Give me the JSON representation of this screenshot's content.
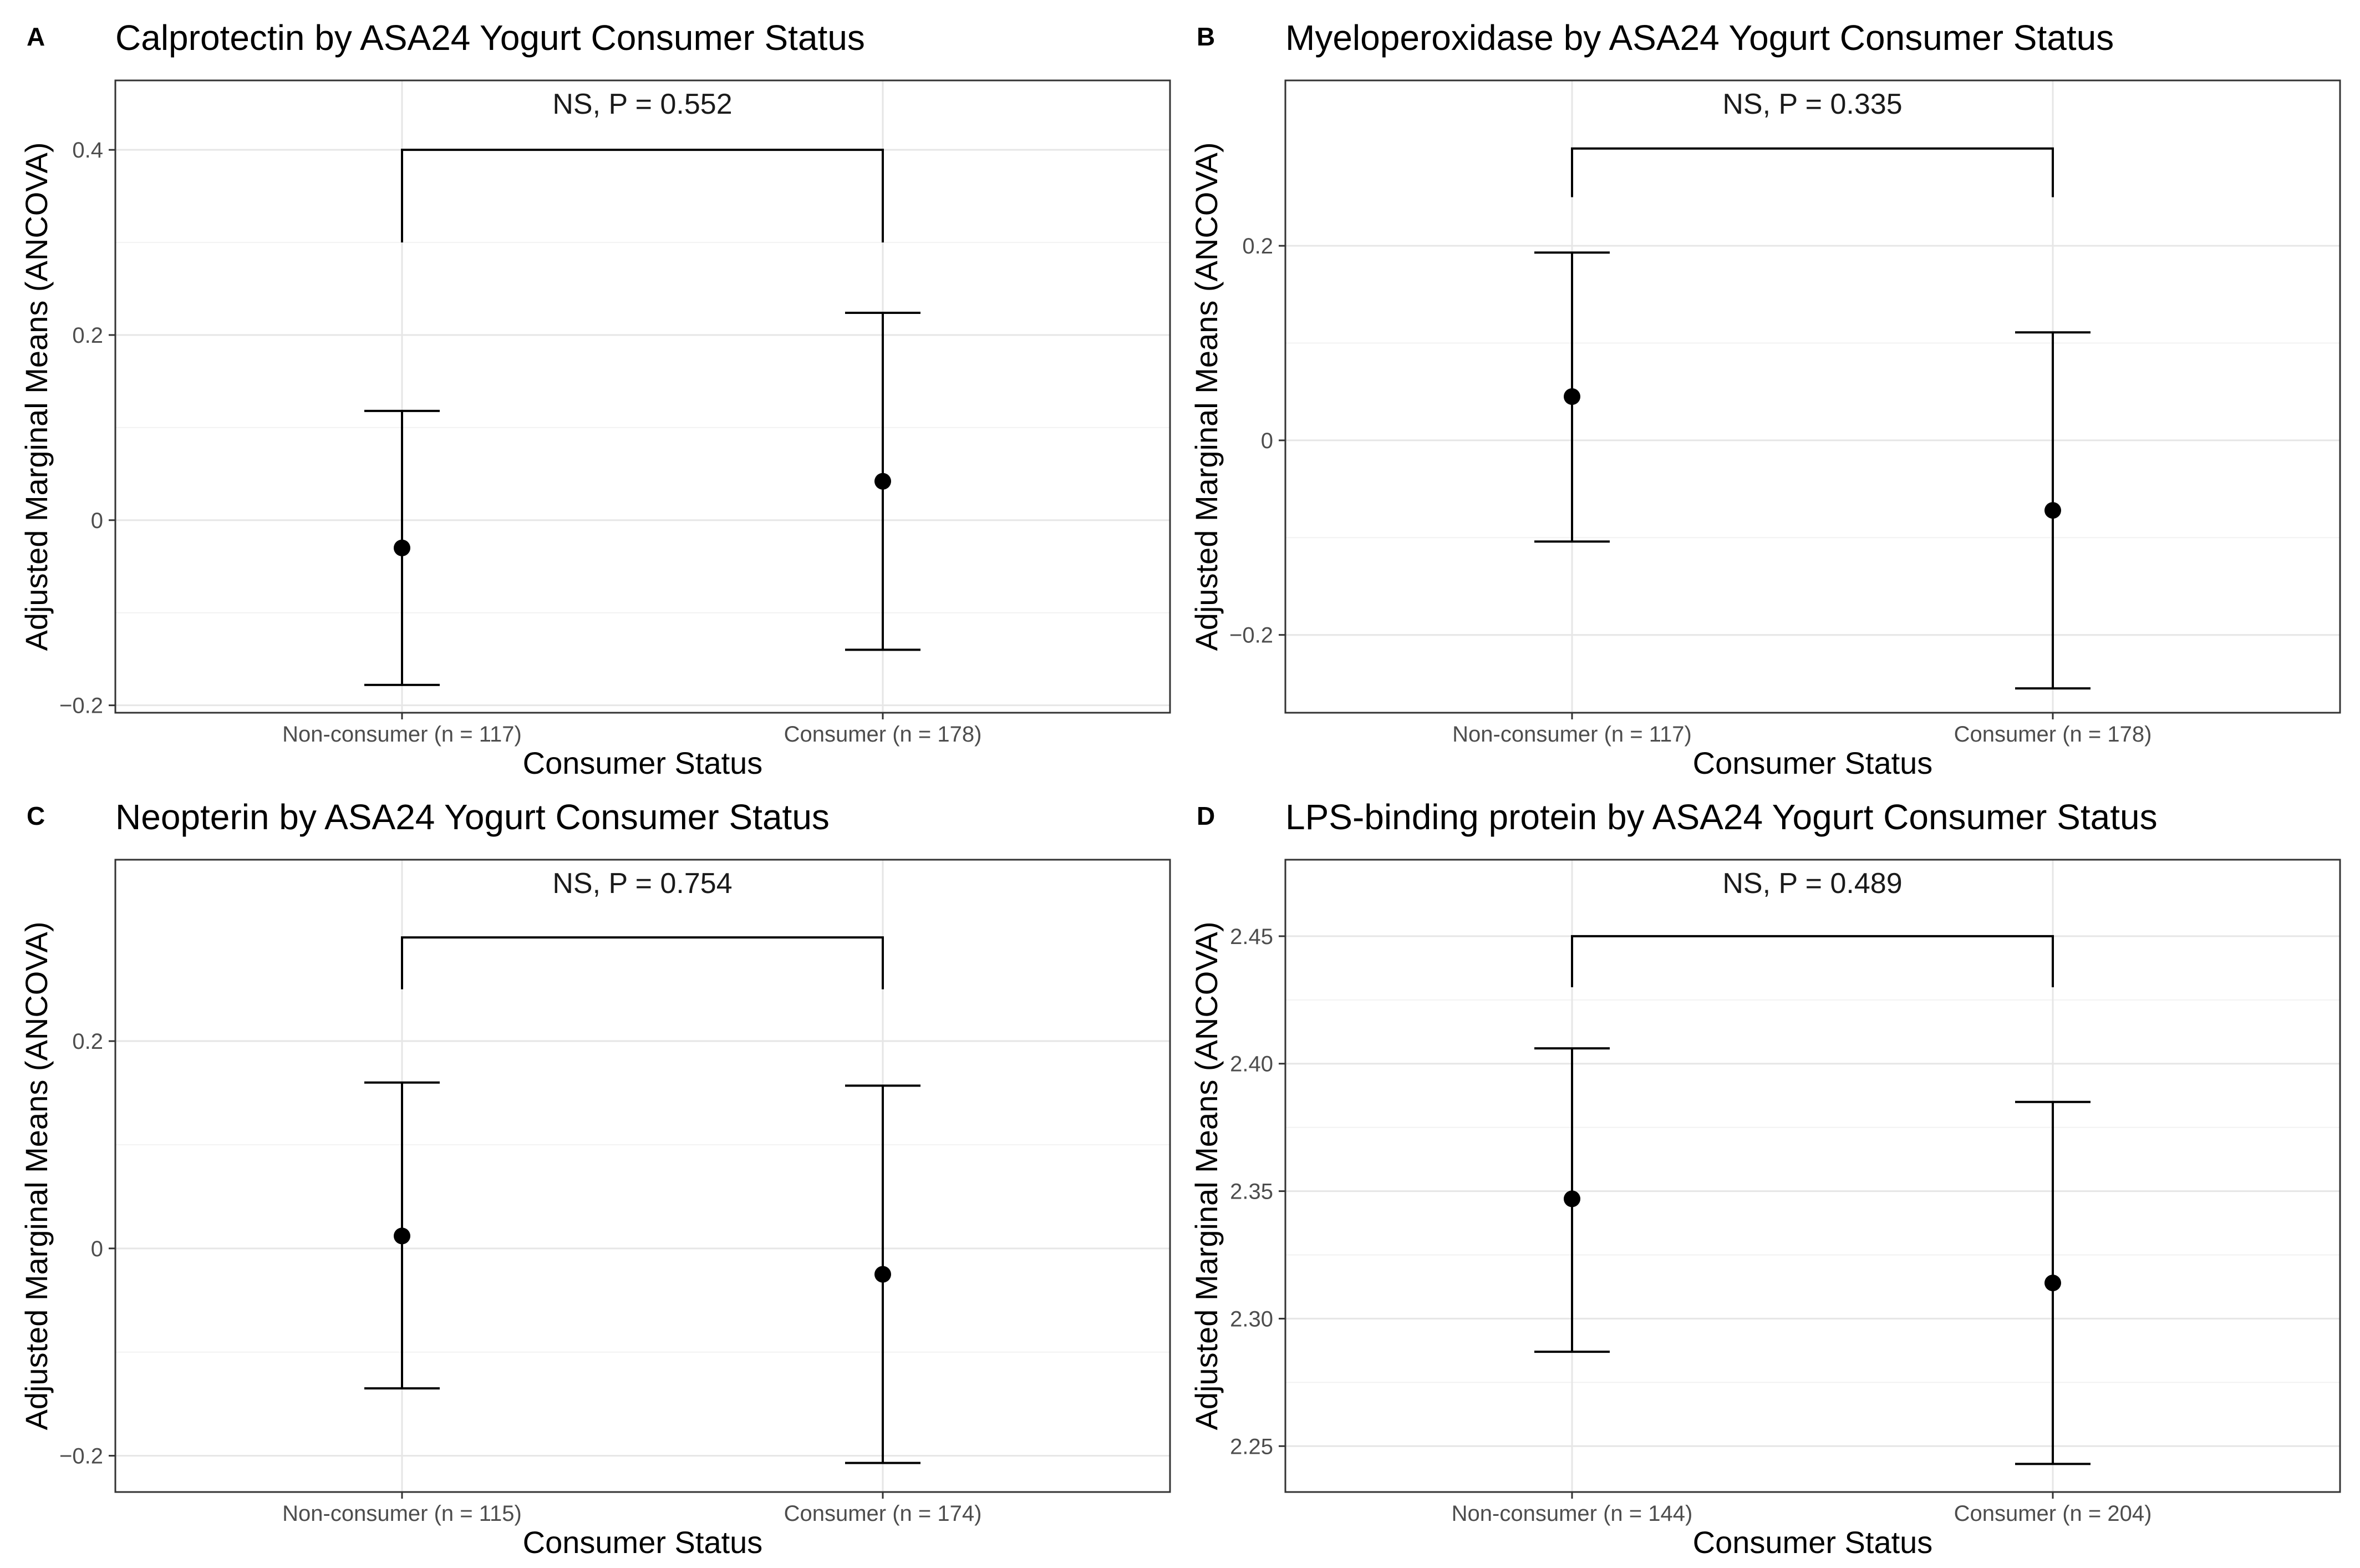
{
  "chart_data": [
    {
      "panel": "A",
      "type": "scatter",
      "title": "Calprotectin by ASA24 Yogurt Consumer Status",
      "xlabel": "Consumer Status",
      "ylabel": "Adjusted Marginal Means (ANCOVA)",
      "categories": [
        "Non-consumer (n = 117)",
        "Consumer (n = 178)"
      ],
      "means": [
        -0.03,
        0.042
      ],
      "ci_lower": [
        -0.178,
        -0.14
      ],
      "ci_upper": [
        0.118,
        0.224
      ],
      "ylim": [
        -0.208,
        0.475
      ],
      "yticks": [
        -0.2,
        0,
        0.2,
        0.4
      ],
      "ytick_labels": [
        "−0.2",
        "0",
        "0.2",
        "0.4"
      ],
      "bracket": {
        "top": 0.4,
        "left_end": 0.3,
        "right_end": 0.3,
        "label": "NS, P = 0.552"
      },
      "grid": true
    },
    {
      "panel": "B",
      "type": "scatter",
      "title": "Myeloperoxidase by ASA24 Yogurt Consumer Status",
      "xlabel": "Consumer Status",
      "ylabel": "Adjusted Marginal Means (ANCOVA)",
      "categories": [
        "Non-consumer (n = 117)",
        "Consumer (n = 178)"
      ],
      "means": [
        0.045,
        -0.072
      ],
      "ci_lower": [
        -0.104,
        -0.255
      ],
      "ci_upper": [
        0.193,
        0.111
      ],
      "ylim": [
        -0.28,
        0.37
      ],
      "yticks": [
        -0.2,
        0,
        0.2
      ],
      "ytick_labels": [
        "−0.2",
        "0",
        "0.2"
      ],
      "bracket": {
        "top": 0.3,
        "left_end": 0.25,
        "right_end": 0.25,
        "label": "NS, P = 0.335"
      },
      "grid": true
    },
    {
      "panel": "C",
      "type": "scatter",
      "title": "Neopterin by ASA24 Yogurt Consumer Status",
      "xlabel": "Consumer Status",
      "ylabel": "Adjusted Marginal Means (ANCOVA)",
      "categories": [
        "Non-consumer (n = 115)",
        "Consumer (n = 174)"
      ],
      "means": [
        0.012,
        -0.025
      ],
      "ci_lower": [
        -0.135,
        -0.207
      ],
      "ci_upper": [
        0.16,
        0.157
      ],
      "ylim": [
        -0.235,
        0.375
      ],
      "yticks": [
        -0.2,
        0,
        0.2
      ],
      "ytick_labels": [
        "−0.2",
        "0",
        "0.2"
      ],
      "bracket": {
        "top": 0.3,
        "left_end": 0.25,
        "right_end": 0.25,
        "label": "NS, P = 0.754"
      },
      "grid": true
    },
    {
      "panel": "D",
      "type": "scatter",
      "title": "LPS-binding protein by ASA24 Yogurt Consumer Status",
      "xlabel": "Consumer Status",
      "ylabel": "Adjusted Marginal Means (ANCOVA)",
      "categories": [
        "Non-consumer (n = 144)",
        "Consumer (n = 204)"
      ],
      "means": [
        2.347,
        2.314
      ],
      "ci_lower": [
        2.287,
        2.243
      ],
      "ci_upper": [
        2.406,
        2.385
      ],
      "ylim": [
        2.232,
        2.48
      ],
      "yticks": [
        2.25,
        2.3,
        2.35,
        2.4,
        2.45
      ],
      "ytick_labels": [
        "2.25",
        "2.30",
        "2.35",
        "2.40",
        "2.45"
      ],
      "bracket": {
        "top": 2.45,
        "left_end": 2.43,
        "right_end": 2.43,
        "label": "NS, P = 0.489"
      },
      "grid": true
    }
  ]
}
